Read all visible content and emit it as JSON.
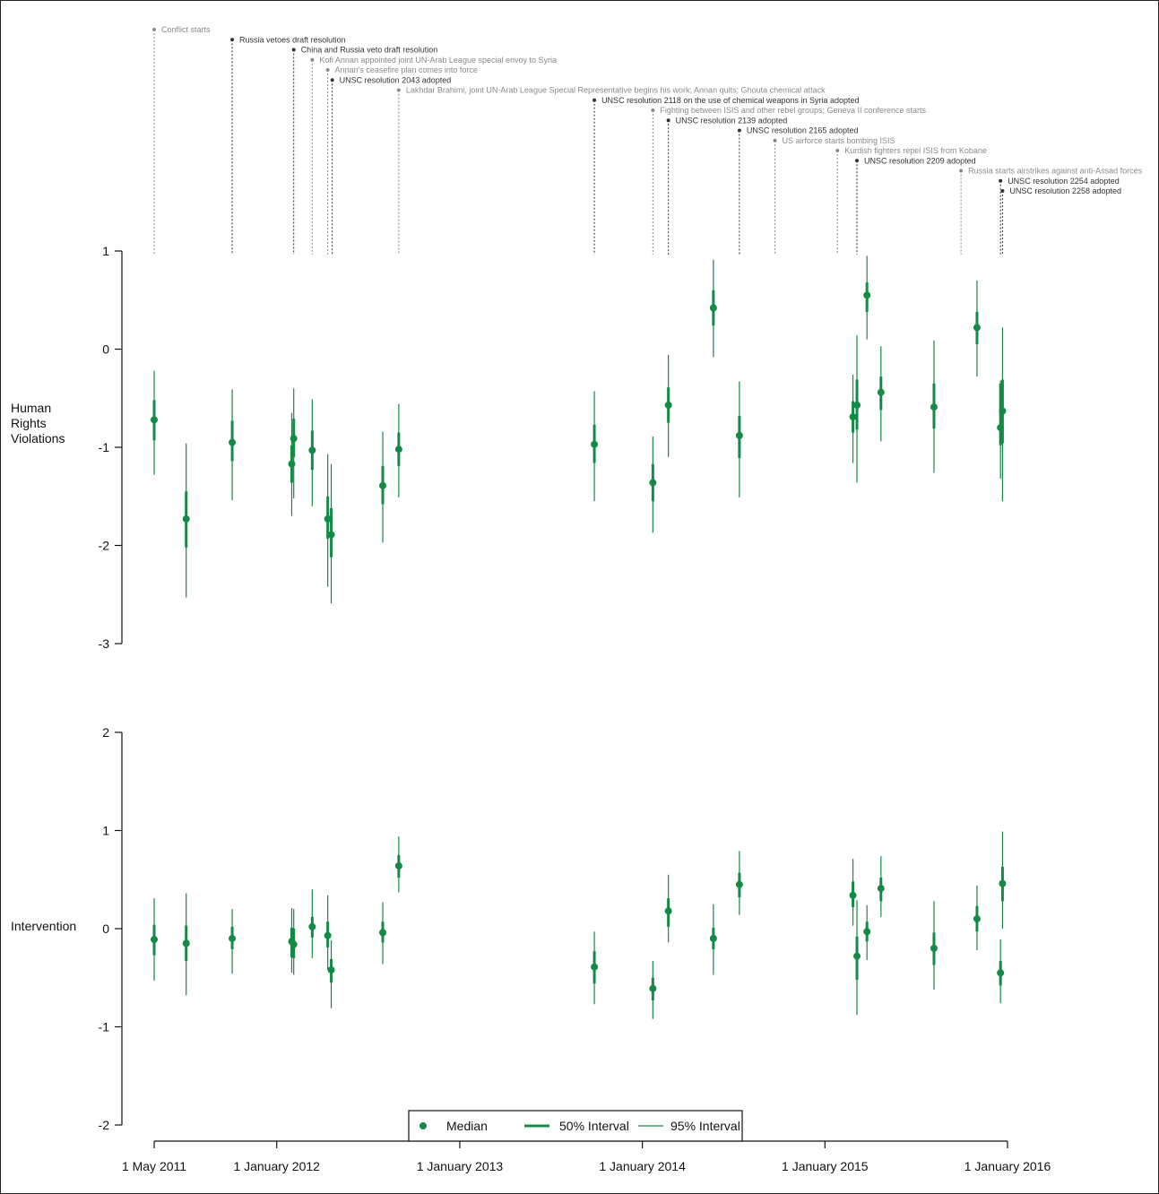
{
  "chart_data": {
    "type": "scatter",
    "colors": {
      "series": "#138a45",
      "event_major": "#333333",
      "event_minor": "#8a8a8a",
      "axis": "#111111"
    },
    "x_axis": {
      "ticks": [
        {
          "date": "2011-05-01",
          "label": "1 May 2011"
        },
        {
          "date": "2012-01-01",
          "label": "1 January 2012"
        },
        {
          "date": "2013-01-01",
          "label": "1 January 2013"
        },
        {
          "date": "2014-01-01",
          "label": "1 January 2014"
        },
        {
          "date": "2015-01-01",
          "label": "1 January 2015"
        },
        {
          "date": "2016-01-01",
          "label": "1 January 2016"
        }
      ],
      "range": [
        "2011-05-01",
        "2016-01-01"
      ]
    },
    "events": [
      {
        "date": "2011-05-01",
        "label": "Conflict starts",
        "major": false
      },
      {
        "date": "2011-10-04",
        "label": "Russia vetoes draft resolution",
        "major": true
      },
      {
        "date": "2012-02-04",
        "label": "China and Russia veto draft resolution",
        "major": true
      },
      {
        "date": "2012-03-12",
        "label": "Kofi Annan appointed joint UN-Arab League special envoy to Syria",
        "major": false
      },
      {
        "date": "2012-04-12",
        "label": "Annan's ceasefire plan comes into force",
        "major": false
      },
      {
        "date": "2012-04-21",
        "label": "UNSC resolution 2043 adopted",
        "major": true
      },
      {
        "date": "2012-09-01",
        "label": "Lakhdar Brahimi, joint UN-Arab League Special Representative begins his work; Annan quits; Ghouta chemical attack",
        "major": false
      },
      {
        "date": "2013-09-27",
        "label": "UNSC resolution 2118 on the use of chemical weapons in Syria adopted",
        "major": true
      },
      {
        "date": "2014-01-22",
        "label": "Fighting between ISIS and other rebel groups; Geneva II conference starts",
        "major": false
      },
      {
        "date": "2014-02-22",
        "label": "UNSC resolution 2139 adopted",
        "major": true
      },
      {
        "date": "2014-07-14",
        "label": "UNSC resolution 2165 adopted",
        "major": true
      },
      {
        "date": "2014-09-23",
        "label": "US airforce starts bombing ISIS",
        "major": false
      },
      {
        "date": "2015-01-26",
        "label": "Kurdish fighters repel ISIS from Kobane",
        "major": false
      },
      {
        "date": "2015-03-06",
        "label": "UNSC resolution 2209 adopted",
        "major": true
      },
      {
        "date": "2015-09-30",
        "label": "Russia starts airstrikes against anti-Assad forces",
        "major": false
      },
      {
        "date": "2015-12-18",
        "label": "UNSC resolution 2254 adopted",
        "major": true
      },
      {
        "date": "2015-12-22",
        "label": "UNSC resolution 2258 adopted",
        "major": true
      }
    ],
    "panels": [
      {
        "label": "Human\nRights\nViolations",
        "ylim": [
          -3,
          1
        ],
        "yticks": [
          "1",
          "0",
          "-1",
          "-2",
          "-3"
        ],
        "points": [
          {
            "date": "2011-05-01",
            "median": -0.72,
            "i50": [
              -0.93,
              -0.52
            ],
            "i95": [
              -1.28,
              -0.22
            ]
          },
          {
            "date": "2011-07-04",
            "median": -1.73,
            "i50": [
              -2.02,
              -1.45
            ],
            "i95": [
              -2.53,
              -0.96
            ]
          },
          {
            "date": "2011-10-04",
            "median": -0.95,
            "i50": [
              -1.14,
              -0.73
            ],
            "i95": [
              -1.54,
              -0.41
            ]
          },
          {
            "date": "2012-01-31",
            "median": -1.17,
            "i50": [
              -1.36,
              -0.98
            ],
            "i95": [
              -1.7,
              -0.65
            ]
          },
          {
            "date": "2012-02-04",
            "median": -0.91,
            "i50": [
              -1.1,
              -0.71
            ],
            "i95": [
              -1.52,
              -0.4
            ]
          },
          {
            "date": "2012-03-12",
            "median": -1.03,
            "i50": [
              -1.23,
              -0.83
            ],
            "i95": [
              -1.6,
              -0.51
            ]
          },
          {
            "date": "2012-04-12",
            "median": -1.73,
            "i50": [
              -1.93,
              -1.5
            ],
            "i95": [
              -2.42,
              -1.07
            ]
          },
          {
            "date": "2012-04-19",
            "median": -1.89,
            "i50": [
              -2.12,
              -1.62
            ],
            "i95": [
              -2.59,
              -1.17
            ]
          },
          {
            "date": "2012-07-31",
            "median": -1.39,
            "i50": [
              -1.58,
              -1.19
            ],
            "i95": [
              -1.97,
              -0.84
            ]
          },
          {
            "date": "2012-09-01",
            "median": -1.02,
            "i50": [
              -1.19,
              -0.85
            ],
            "i95": [
              -1.51,
              -0.56
            ]
          },
          {
            "date": "2013-09-27",
            "median": -0.97,
            "i50": [
              -1.16,
              -0.77
            ],
            "i95": [
              -1.55,
              -0.43
            ]
          },
          {
            "date": "2014-01-22",
            "median": -1.36,
            "i50": [
              -1.55,
              -1.17
            ],
            "i95": [
              -1.87,
              -0.89
            ]
          },
          {
            "date": "2014-02-22",
            "median": -0.57,
            "i50": [
              -0.75,
              -0.39
            ],
            "i95": [
              -1.1,
              -0.06
            ]
          },
          {
            "date": "2014-05-23",
            "median": 0.42,
            "i50": [
              0.24,
              0.6
            ],
            "i95": [
              -0.08,
              0.91
            ]
          },
          {
            "date": "2014-07-14",
            "median": -0.88,
            "i50": [
              -1.11,
              -0.68
            ],
            "i95": [
              -1.51,
              -0.33
            ]
          },
          {
            "date": "2015-02-26",
            "median": -0.69,
            "i50": [
              -0.85,
              -0.53
            ],
            "i95": [
              -1.16,
              -0.26
            ]
          },
          {
            "date": "2015-03-06",
            "median": -0.57,
            "i50": [
              -0.82,
              -0.31
            ],
            "i95": [
              -1.36,
              0.14
            ]
          },
          {
            "date": "2015-03-26",
            "median": 0.55,
            "i50": [
              0.38,
              0.68
            ],
            "i95": [
              0.1,
              0.95
            ]
          },
          {
            "date": "2015-04-23",
            "median": -0.44,
            "i50": [
              -0.62,
              -0.28
            ],
            "i95": [
              -0.94,
              0.03
            ]
          },
          {
            "date": "2015-08-07",
            "median": -0.59,
            "i50": [
              -0.81,
              -0.35
            ],
            "i95": [
              -1.26,
              0.09
            ]
          },
          {
            "date": "2015-11-01",
            "median": 0.22,
            "i50": [
              0.05,
              0.38
            ],
            "i95": [
              -0.28,
              0.7
            ]
          },
          {
            "date": "2015-12-18",
            "median": -0.8,
            "i50": [
              -0.98,
              -0.35
            ],
            "i95": [
              -1.32,
              -0.32
            ]
          },
          {
            "date": "2015-12-22",
            "median": -0.63,
            "i50": [
              -0.96,
              -0.31
            ],
            "i95": [
              -1.55,
              0.22
            ]
          }
        ]
      },
      {
        "label": "Intervention",
        "ylim": [
          -2,
          2
        ],
        "yticks": [
          "2",
          "1",
          "0",
          "-1",
          "-2"
        ],
        "points": [
          {
            "date": "2011-05-01",
            "median": -0.11,
            "i50": [
              -0.27,
              0.04
            ],
            "i95": [
              -0.53,
              0.31
            ]
          },
          {
            "date": "2011-07-04",
            "median": -0.15,
            "i50": [
              -0.33,
              0.03
            ],
            "i95": [
              -0.68,
              0.36
            ]
          },
          {
            "date": "2011-10-04",
            "median": -0.1,
            "i50": [
              -0.21,
              0.02
            ],
            "i95": [
              -0.46,
              0.2
            ]
          },
          {
            "date": "2012-01-31",
            "median": -0.13,
            "i50": [
              -0.29,
              0.01
            ],
            "i95": [
              -0.45,
              0.21
            ]
          },
          {
            "date": "2012-02-04",
            "median": -0.16,
            "i50": [
              -0.3,
              0.0
            ],
            "i95": [
              -0.47,
              0.2
            ]
          },
          {
            "date": "2012-03-12",
            "median": 0.02,
            "i50": [
              -0.09,
              0.12
            ],
            "i95": [
              -0.3,
              0.4
            ]
          },
          {
            "date": "2012-04-12",
            "median": -0.07,
            "i50": [
              -0.19,
              0.07
            ],
            "i95": [
              -0.42,
              0.34
            ]
          },
          {
            "date": "2012-04-19",
            "median": -0.42,
            "i50": [
              -0.55,
              -0.31
            ],
            "i95": [
              -0.81,
              -0.12
            ]
          },
          {
            "date": "2012-07-31",
            "median": -0.04,
            "i50": [
              -0.14,
              0.07
            ],
            "i95": [
              -0.36,
              0.27
            ]
          },
          {
            "date": "2012-09-01",
            "median": 0.64,
            "i50": [
              0.52,
              0.75
            ],
            "i95": [
              0.37,
              0.94
            ]
          },
          {
            "date": "2013-09-27",
            "median": -0.39,
            "i50": [
              -0.56,
              -0.23
            ],
            "i95": [
              -0.77,
              -0.03
            ]
          },
          {
            "date": "2014-01-22",
            "median": -0.61,
            "i50": [
              -0.73,
              -0.5
            ],
            "i95": [
              -0.92,
              -0.33
            ]
          },
          {
            "date": "2014-02-22",
            "median": 0.18,
            "i50": [
              0.02,
              0.31
            ],
            "i95": [
              -0.14,
              0.55
            ]
          },
          {
            "date": "2014-05-23",
            "median": -0.1,
            "i50": [
              -0.21,
              0.01
            ],
            "i95": [
              -0.47,
              0.25
            ]
          },
          {
            "date": "2014-07-14",
            "median": 0.45,
            "i50": [
              0.32,
              0.57
            ],
            "i95": [
              0.14,
              0.79
            ]
          },
          {
            "date": "2015-02-26",
            "median": 0.34,
            "i50": [
              0.22,
              0.48
            ],
            "i95": [
              0.03,
              0.71
            ]
          },
          {
            "date": "2015-03-06",
            "median": -0.28,
            "i50": [
              -0.52,
              -0.08
            ],
            "i95": [
              -0.88,
              0.29
            ]
          },
          {
            "date": "2015-03-26",
            "median": -0.03,
            "i50": [
              -0.13,
              0.07
            ],
            "i95": [
              -0.32,
              0.24
            ]
          },
          {
            "date": "2015-04-23",
            "median": 0.41,
            "i50": [
              0.28,
              0.52
            ],
            "i95": [
              0.12,
              0.74
            ]
          },
          {
            "date": "2015-08-07",
            "median": -0.2,
            "i50": [
              -0.37,
              -0.04
            ],
            "i95": [
              -0.62,
              0.28
            ]
          },
          {
            "date": "2015-11-01",
            "median": 0.1,
            "i50": [
              -0.03,
              0.23
            ],
            "i95": [
              -0.22,
              0.44
            ]
          },
          {
            "date": "2015-12-18",
            "median": -0.45,
            "i50": [
              -0.58,
              -0.33
            ],
            "i95": [
              -0.76,
              -0.11
            ]
          },
          {
            "date": "2015-12-22",
            "median": 0.46,
            "i50": [
              0.28,
              0.63
            ],
            "i95": [
              0.0,
              0.99
            ]
          }
        ]
      }
    ],
    "legend": {
      "placement": "bottom-center",
      "entries": [
        {
          "kind": "point",
          "label": "Median"
        },
        {
          "kind": "thick",
          "label": "50% Interval"
        },
        {
          "kind": "thin",
          "label": "95% Interval"
        }
      ]
    }
  }
}
